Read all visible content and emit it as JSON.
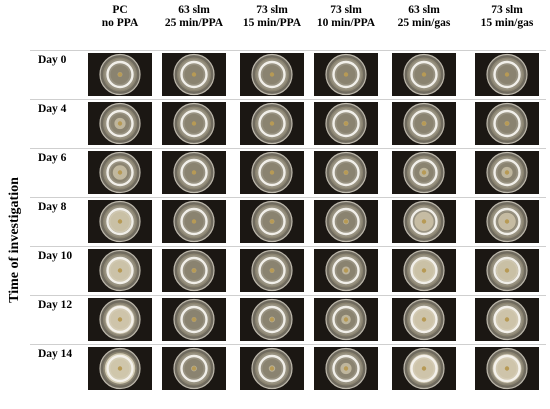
{
  "figure": {
    "y_axis_label": "Time of investigation",
    "columns": [
      {
        "line1": "PC",
        "line2": "no PPA"
      },
      {
        "line1": "63 slm",
        "line2": "25 min/PPA"
      },
      {
        "line1": "73 slm",
        "line2": "15 min/PPA"
      },
      {
        "line1": "73 slm",
        "line2": "10 min/PPA"
      },
      {
        "line1": "63 slm",
        "line2": "25 min/gas"
      },
      {
        "line1": "73 slm",
        "line2": "15 min/gas"
      }
    ],
    "rows": [
      {
        "label": "Day 0",
        "growth": [
          0.15,
          0.1,
          0.1,
          0.12,
          0.1,
          0.1
        ]
      },
      {
        "label": "Day 4",
        "growth": [
          0.35,
          0.1,
          0.12,
          0.15,
          0.15,
          0.15
        ]
      },
      {
        "label": "Day 6",
        "growth": [
          0.45,
          0.12,
          0.12,
          0.15,
          0.3,
          0.35
        ]
      },
      {
        "label": "Day 8",
        "growth": [
          0.7,
          0.12,
          0.15,
          0.18,
          0.6,
          0.55
        ]
      },
      {
        "label": "Day 10",
        "growth": [
          0.8,
          0.15,
          0.15,
          0.25,
          0.75,
          0.7
        ]
      },
      {
        "label": "Day 12",
        "growth": [
          0.9,
          0.15,
          0.18,
          0.3,
          0.85,
          0.85
        ]
      },
      {
        "label": "Day 14",
        "growth": [
          0.95,
          0.18,
          0.2,
          0.35,
          0.9,
          0.9
        ]
      }
    ]
  },
  "colors": {
    "background": "#ffffff",
    "photo_bg": "#1b1713",
    "ring_light": "#f4f2ec",
    "agar": "#8a8370",
    "mycelium": "#d9cfb3"
  }
}
